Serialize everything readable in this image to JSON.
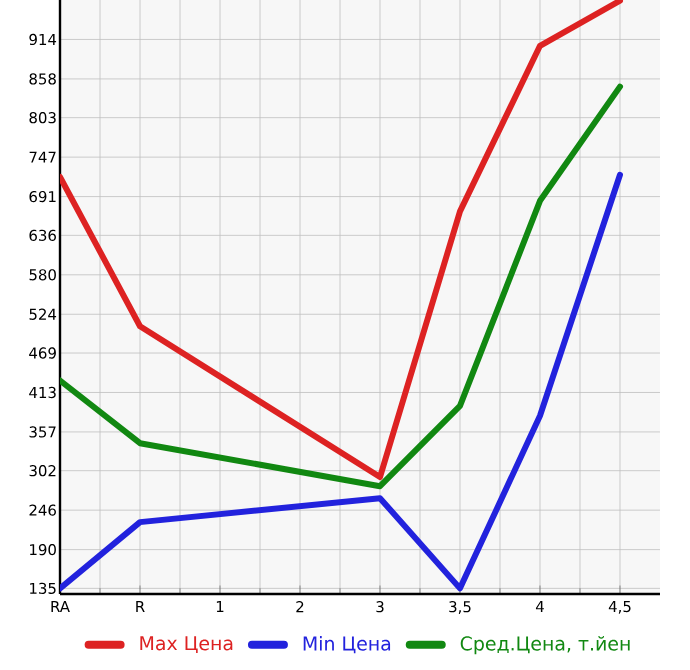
{
  "chart_data": {
    "type": "line",
    "categories": [
      "RA",
      "R",
      "1",
      "2",
      "3",
      "3,5",
      "4",
      "4,5"
    ],
    "series": [
      {
        "name": "Max Цена",
        "color": "#dd2222",
        "values": [
          719,
          507,
          null,
          null,
          293,
          670,
          905,
          969
        ]
      },
      {
        "name": "Min Цена",
        "color": "#2222dd",
        "values": [
          135,
          229,
          null,
          null,
          263,
          135,
          380,
          722
        ]
      },
      {
        "name": "Сред.Цена, т.йен",
        "color": "#118811",
        "values": [
          430,
          341,
          null,
          null,
          280,
          394,
          685,
          847
        ]
      }
    ],
    "ylim": [
      127,
      970
    ],
    "yticks": [
      135,
      190,
      246,
      302,
      357,
      413,
      469,
      524,
      580,
      636,
      691,
      747,
      803,
      858,
      914
    ],
    "grid": true,
    "legend": "bottom",
    "marker": "none",
    "line_style": "solid"
  }
}
